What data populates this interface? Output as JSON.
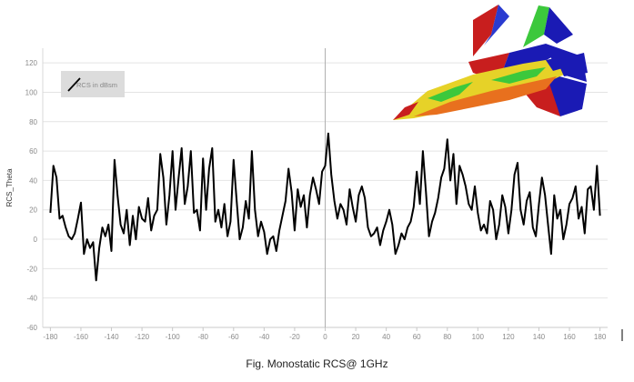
{
  "caption": "Fig. Monostatic RCS@ 1GHz",
  "colors": {
    "series": "#000000",
    "grid": "#e4e4e4",
    "zero_axis": "#b0b0b0",
    "legend_box": "#dcdcdc",
    "aircraft_red": "#c81e1e",
    "aircraft_blue": "#1a1ab4",
    "aircraft_green": "#3cc83c",
    "aircraft_yellow": "#e6d228",
    "aircraft_orange": "#e8701e"
  },
  "inset_image": {
    "name": "aircraft-rcs-surface-image",
    "description_icon": "fighter-jet-icon"
  },
  "chart_data": {
    "type": "line",
    "ylabel": "RCS_Theta",
    "xlabel": "",
    "xlim": [
      -185,
      185
    ],
    "ylim": [
      -60,
      130
    ],
    "x_ticks": [
      -180,
      -160,
      -140,
      -120,
      -100,
      -80,
      -60,
      -40,
      -20,
      0,
      20,
      40,
      60,
      80,
      100,
      120,
      140,
      160,
      180
    ],
    "y_ticks": [
      -60,
      -40,
      -20,
      0,
      20,
      40,
      60,
      80,
      100,
      120
    ],
    "grid": true,
    "legend": {
      "position": "top-left",
      "entries": [
        "RCS in dBsm"
      ]
    },
    "series": [
      {
        "name": "RCS in dBsm",
        "x": [
          -180,
          -178,
          -176,
          -174,
          -172,
          -170,
          -168,
          -166,
          -164,
          -162,
          -160,
          -158,
          -156,
          -154,
          -152,
          -150,
          -148,
          -146,
          -144,
          -142,
          -140,
          -138,
          -136,
          -134,
          -132,
          -130,
          -128,
          -126,
          -124,
          -122,
          -120,
          -118,
          -116,
          -114,
          -112,
          -110,
          -108,
          -106,
          -104,
          -102,
          -100,
          -98,
          -96,
          -94,
          -92,
          -90,
          -88,
          -86,
          -84,
          -82,
          -80,
          -78,
          -76,
          -74,
          -72,
          -70,
          -68,
          -66,
          -64,
          -62,
          -60,
          -58,
          -56,
          -54,
          -52,
          -50,
          -48,
          -46,
          -44,
          -42,
          -40,
          -38,
          -36,
          -34,
          -32,
          -30,
          -28,
          -26,
          -24,
          -22,
          -20,
          -18,
          -16,
          -14,
          -12,
          -10,
          -8,
          -6,
          -4,
          -2,
          0,
          2,
          4,
          6,
          8,
          10,
          12,
          14,
          16,
          18,
          20,
          22,
          24,
          26,
          28,
          30,
          32,
          34,
          36,
          38,
          40,
          42,
          44,
          46,
          48,
          50,
          52,
          54,
          56,
          58,
          60,
          62,
          64,
          66,
          68,
          70,
          72,
          74,
          76,
          78,
          80,
          82,
          84,
          86,
          88,
          90,
          92,
          94,
          96,
          98,
          100,
          102,
          104,
          106,
          108,
          110,
          112,
          114,
          116,
          118,
          120,
          122,
          124,
          126,
          128,
          130,
          132,
          134,
          136,
          138,
          140,
          142,
          144,
          146,
          148,
          150,
          152,
          154,
          156,
          158,
          160,
          162,
          164,
          166,
          168,
          170,
          172,
          174,
          176,
          178,
          180
        ],
        "values": [
          18,
          50,
          42,
          14,
          16,
          8,
          2,
          0,
          4,
          14,
          25,
          -10,
          0,
          -6,
          -2,
          -28,
          -6,
          8,
          2,
          10,
          -8,
          54,
          30,
          10,
          4,
          20,
          -4,
          16,
          0,
          22,
          14,
          12,
          28,
          6,
          16,
          20,
          58,
          42,
          10,
          30,
          60,
          20,
          42,
          62,
          24,
          36,
          60,
          18,
          20,
          6,
          55,
          20,
          48,
          62,
          12,
          20,
          8,
          24,
          2,
          12,
          54,
          26,
          0,
          8,
          26,
          14,
          60,
          20,
          2,
          12,
          5,
          -10,
          0,
          2,
          -8,
          6,
          16,
          26,
          48,
          32,
          6,
          34,
          22,
          30,
          8,
          30,
          42,
          34,
          24,
          46,
          50,
          72,
          44,
          26,
          14,
          24,
          20,
          10,
          34,
          22,
          12,
          30,
          36,
          28,
          8,
          2,
          4,
          8,
          -4,
          6,
          12,
          20,
          10,
          -10,
          -4,
          4,
          0,
          8,
          12,
          22,
          46,
          24,
          60,
          32,
          2,
          12,
          18,
          28,
          42,
          48,
          68,
          40,
          58,
          24,
          50,
          44,
          36,
          24,
          20,
          36,
          18,
          6,
          10,
          4,
          26,
          20,
          0,
          10,
          30,
          22,
          4,
          20,
          44,
          52,
          20,
          10,
          26,
          32,
          8,
          2,
          24,
          42,
          30,
          10,
          -10,
          30,
          14,
          20,
          0,
          10,
          24,
          28,
          36,
          14,
          22,
          4,
          34,
          36,
          20,
          50,
          16
        ]
      }
    ]
  }
}
